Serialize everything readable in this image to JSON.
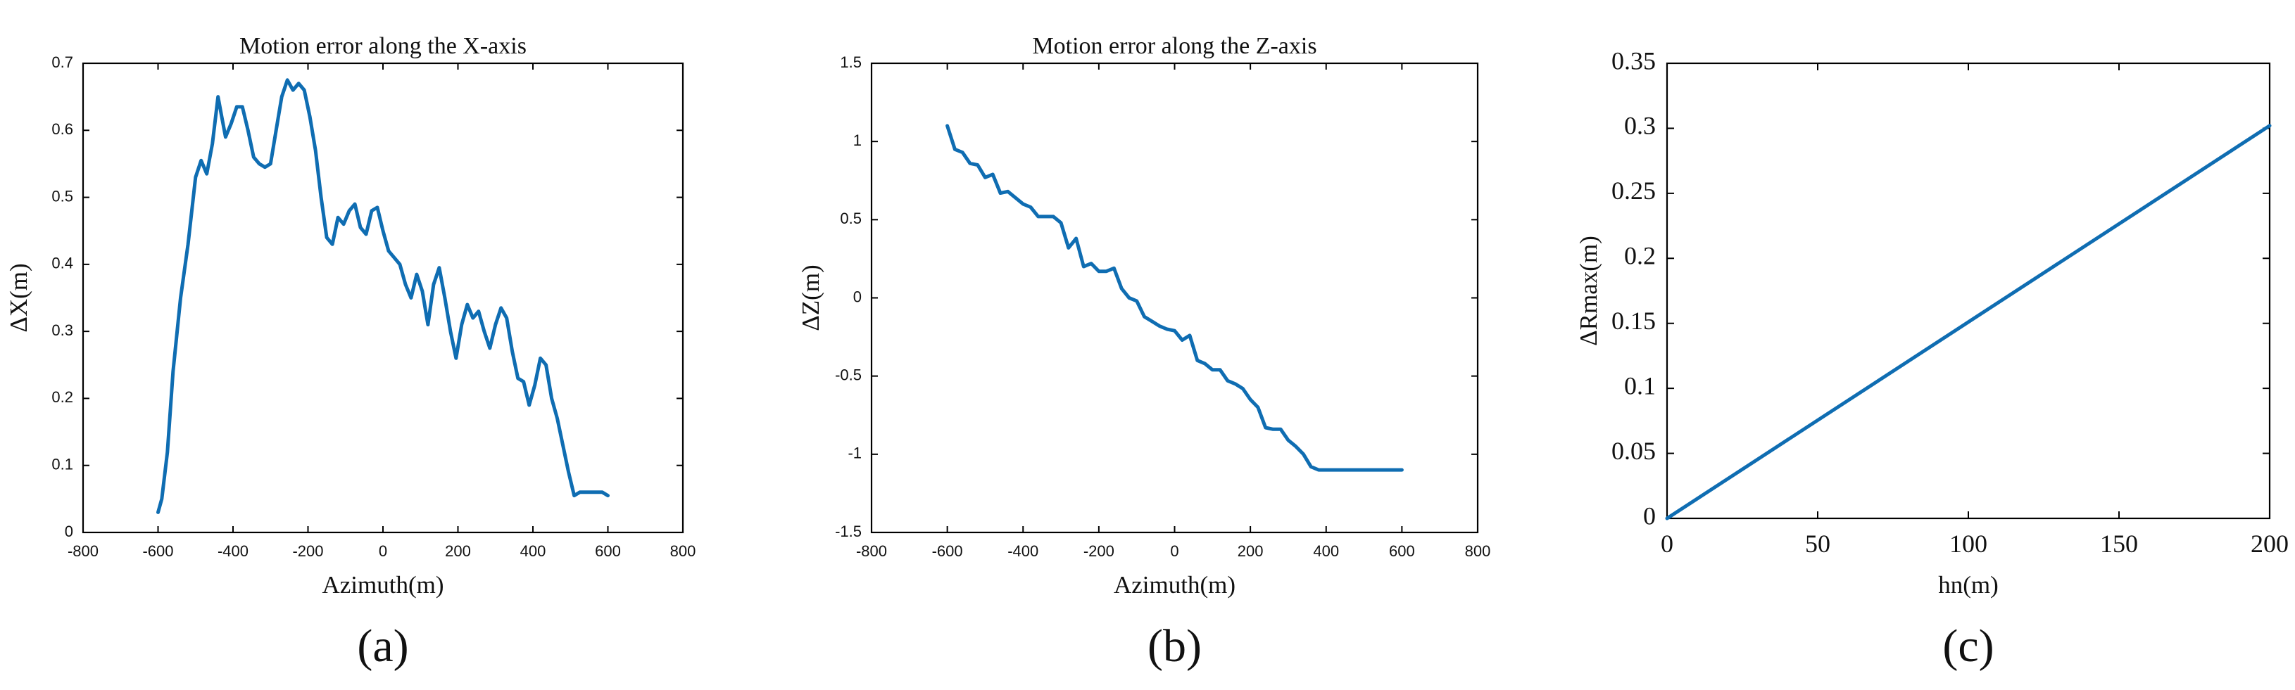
{
  "chart_data": [
    {
      "type": "line",
      "panel_label": "(a)",
      "title": "Motion error along the X-axis",
      "xlabel": "Azimuth(m)",
      "ylabel": "ΔX(m)",
      "xlim": [
        -800,
        800
      ],
      "ylim": [
        0,
        0.7
      ],
      "xticks": [
        "-800",
        "-600",
        "-400",
        "-200",
        "0",
        "200",
        "400",
        "600",
        "800"
      ],
      "yticks": [
        "0",
        "0.1",
        "0.2",
        "0.3",
        "0.4",
        "0.5",
        "0.6",
        "0.7"
      ],
      "grid": false,
      "series": [
        {
          "color": "#0f6db2",
          "x": [
            -600,
            -590,
            -575,
            -560,
            -540,
            -520,
            -500,
            -485,
            -470,
            -455,
            -440,
            -430,
            -420,
            -405,
            -390,
            -375,
            -360,
            -345,
            -330,
            -315,
            -300,
            -285,
            -270,
            -255,
            -240,
            -225,
            -210,
            -195,
            -180,
            -165,
            -150,
            -135,
            -120,
            -105,
            -90,
            -75,
            -60,
            -45,
            -30,
            -15,
            0,
            15,
            30,
            45,
            60,
            75,
            90,
            105,
            120,
            135,
            150,
            165,
            180,
            195,
            210,
            225,
            240,
            255,
            270,
            285,
            300,
            315,
            330,
            345,
            360,
            375,
            390,
            405,
            420,
            435,
            450,
            465,
            480,
            495,
            510,
            525,
            540,
            555,
            570,
            585,
            600
          ],
          "y": [
            0.03,
            0.05,
            0.12,
            0.24,
            0.35,
            0.43,
            0.53,
            0.555,
            0.535,
            0.58,
            0.65,
            0.62,
            0.59,
            0.61,
            0.635,
            0.635,
            0.6,
            0.56,
            0.55,
            0.545,
            0.55,
            0.6,
            0.65,
            0.675,
            0.66,
            0.67,
            0.66,
            0.62,
            0.57,
            0.5,
            0.44,
            0.43,
            0.47,
            0.46,
            0.48,
            0.49,
            0.455,
            0.445,
            0.48,
            0.485,
            0.45,
            0.42,
            0.41,
            0.4,
            0.37,
            0.35,
            0.385,
            0.36,
            0.31,
            0.37,
            0.395,
            0.35,
            0.3,
            0.26,
            0.31,
            0.34,
            0.32,
            0.33,
            0.3,
            0.275,
            0.31,
            0.335,
            0.32,
            0.27,
            0.23,
            0.225,
            0.19,
            0.22,
            0.26,
            0.25,
            0.2,
            0.17,
            0.13,
            0.09,
            0.055,
            0.06,
            0.06,
            0.06,
            0.06,
            0.06,
            0.055
          ]
        }
      ]
    },
    {
      "type": "line",
      "panel_label": "(b)",
      "title": "Motion error along the Z-axis",
      "xlabel": "Azimuth(m)",
      "ylabel": "ΔZ(m)",
      "xlim": [
        -800,
        800
      ],
      "ylim": [
        -1.5,
        1.5
      ],
      "xticks": [
        "-800",
        "-600",
        "-400",
        "-200",
        "0",
        "200",
        "400",
        "600",
        "800"
      ],
      "yticks": [
        "-1.5",
        "-1",
        "-0.5",
        "0",
        "0.5",
        "1",
        "1.5"
      ],
      "grid": false,
      "series": [
        {
          "color": "#0f6db2",
          "x": [
            -600,
            -580,
            -560,
            -540,
            -520,
            -500,
            -480,
            -460,
            -440,
            -420,
            -400,
            -380,
            -360,
            -340,
            -320,
            -300,
            -280,
            -260,
            -240,
            -220,
            -200,
            -180,
            -160,
            -140,
            -120,
            -100,
            -80,
            -60,
            -40,
            -20,
            0,
            20,
            40,
            60,
            80,
            100,
            120,
            140,
            160,
            180,
            200,
            220,
            240,
            260,
            280,
            300,
            320,
            340,
            360,
            380,
            400,
            420,
            440,
            460,
            480,
            500,
            520,
            540,
            560,
            580,
            600
          ],
          "y": [
            1.1,
            0.95,
            0.93,
            0.86,
            0.85,
            0.77,
            0.79,
            0.67,
            0.68,
            0.64,
            0.6,
            0.58,
            0.52,
            0.52,
            0.52,
            0.48,
            0.32,
            0.38,
            0.2,
            0.22,
            0.17,
            0.17,
            0.19,
            0.06,
            0.0,
            -0.02,
            -0.12,
            -0.15,
            -0.18,
            -0.2,
            -0.21,
            -0.27,
            -0.24,
            -0.4,
            -0.42,
            -0.46,
            -0.46,
            -0.53,
            -0.55,
            -0.58,
            -0.65,
            -0.7,
            -0.83,
            -0.84,
            -0.84,
            -0.91,
            -0.95,
            -1.0,
            -1.08,
            -1.1,
            -1.1,
            -1.1,
            -1.1,
            -1.1,
            -1.1,
            -1.1,
            -1.1,
            -1.1,
            -1.1,
            -1.1,
            -1.1
          ]
        }
      ]
    },
    {
      "type": "line",
      "panel_label": "(c)",
      "title": "",
      "xlabel": "hn(m)",
      "ylabel": "ΔRmax(m)",
      "xlim": [
        0,
        200
      ],
      "ylim": [
        0,
        0.35
      ],
      "xticks": [
        "0",
        "50",
        "100",
        "150",
        "200"
      ],
      "yticks": [
        "0",
        "0.05",
        "0.1",
        "0.15",
        "0.2",
        "0.25",
        "0.3",
        "0.35"
      ],
      "grid": false,
      "series": [
        {
          "color": "#0f6db2",
          "x": [
            0,
            200
          ],
          "y": [
            0,
            0.302
          ]
        }
      ]
    }
  ]
}
